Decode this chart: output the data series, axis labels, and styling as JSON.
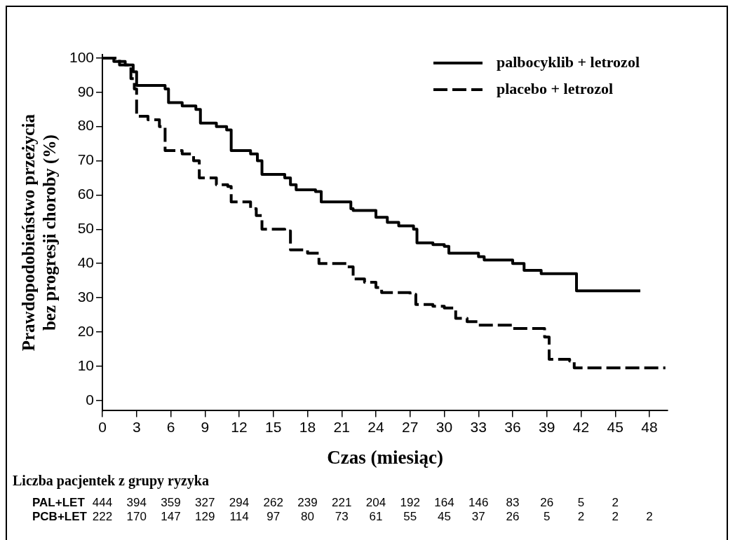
{
  "chart_data": {
    "type": "step",
    "xlabel": "Czas (miesiąc)",
    "ylabel": "Prawdopodobieństwo przeżycia bez progresji choroby (%)",
    "xlim": [
      0,
      49.6
    ],
    "xticks": [
      0,
      3,
      6,
      9,
      12,
      15,
      18,
      21,
      24,
      27,
      30,
      33,
      36,
      39,
      42,
      45,
      48
    ],
    "ylim": [
      -3,
      101
    ],
    "yticks": [
      0,
      10,
      20,
      30,
      40,
      50,
      60,
      70,
      80,
      90,
      100
    ],
    "grid": false,
    "legend": "top right",
    "series": [
      {
        "name": "palbocyklib + letrozol",
        "color": "#000000",
        "line_style": "solid",
        "x": [
          0,
          1,
          2,
          2.7,
          3,
          5.5,
          5.8,
          7,
          8.2,
          8.6,
          10,
          10.9,
          11.3,
          13,
          13.6,
          14,
          16,
          16.5,
          17,
          18.7,
          19.2,
          21.8,
          22,
          24,
          25,
          26,
          27.3,
          27.6,
          29,
          30,
          30.4,
          33,
          33.5,
          36,
          37,
          38.5,
          41.2,
          41.6,
          47.2
        ],
        "values": [
          100,
          99,
          98,
          96,
          92,
          91,
          87,
          86,
          85,
          81,
          80,
          79,
          73,
          72,
          70,
          66,
          65,
          63,
          61.5,
          61,
          58,
          56,
          55.5,
          53.5,
          52,
          51,
          50,
          46,
          45.5,
          45,
          43,
          42,
          41,
          40,
          38,
          37,
          37,
          32,
          32
        ]
      },
      {
        "name": "placebo + letrozol",
        "color": "#000000",
        "line_style": "dashed",
        "x": [
          0,
          1.5,
          2.5,
          2.8,
          3,
          4,
          5,
          5.5,
          7,
          8,
          8.5,
          10,
          11,
          11.3,
          13,
          13.5,
          14,
          16,
          16.5,
          18,
          19,
          21.5,
          22,
          23,
          24,
          24.5,
          27,
          27.5,
          29,
          30,
          31,
          32,
          33,
          36,
          38.5,
          38.8,
          39.2,
          41,
          41.4,
          49.4
        ],
        "values": [
          100,
          98,
          94,
          91,
          83,
          82,
          80,
          73,
          72,
          70,
          65,
          63,
          62.5,
          58,
          56,
          54,
          50,
          49.5,
          44,
          43,
          40,
          39,
          35.5,
          34.5,
          33,
          31.5,
          31,
          28,
          27.5,
          27,
          24,
          23,
          22,
          21,
          21,
          18.5,
          12,
          11.5,
          9.5,
          9.5
        ]
      }
    ],
    "annotations": [
      "Liczba pacjentek z grupy ryzyka",
      "PAL+LET 444 394 359 327 294 262 239 221 204 192 164 146 83 26 5 2",
      "PCB+LET 222 170 147 129 114 97 80 73 61 55 45 37 26 5 2 2 2"
    ]
  }
}
